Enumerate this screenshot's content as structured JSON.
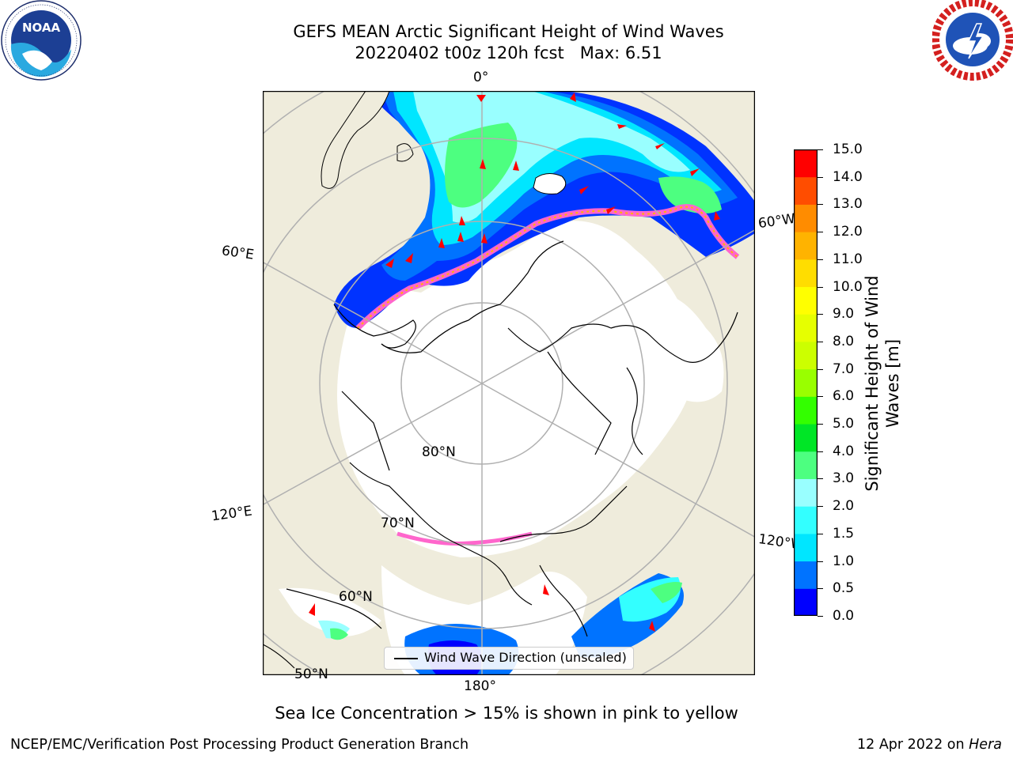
{
  "header": {
    "title_line1": "GEFS MEAN Arctic Significant Height of Wind Waves",
    "title_line2": "20220402 t00z 120h fcst   Max: 6.51"
  },
  "logos": {
    "noaa": {
      "text": "NOAA",
      "ring_text": "NATIONAL OCEANIC AND ATMOSPHERIC ADMINISTRATION · U.S. DEPARTMENT OF COMMERCE"
    },
    "nws": {
      "ring_text": "NATIONAL WEATHER SERVICE"
    }
  },
  "map": {
    "longitude_labels": {
      "lon_0": "0°",
      "lon_60e": "60°E",
      "lon_60w": "60°W",
      "lon_120e": "120°E",
      "lon_120w": "120°W",
      "lon_180": "180°"
    },
    "latitude_labels": {
      "lat_80": "80°N",
      "lat_70": "70°N",
      "lat_60": "60°N",
      "lat_50": "50°N"
    },
    "legend_label": "Wind Wave Direction (unscaled)",
    "colors": {
      "land": "#efecdc",
      "ocean_ice": "#ffffff",
      "graticule": "#b0b0b0",
      "arrow": "#ff0000",
      "coast": "#000000"
    }
  },
  "colorbar": {
    "title_line1": "Significant Height of Wind",
    "title_line2": "Waves [m]",
    "ticks": [
      "0.0",
      "0.5",
      "1.0",
      "1.5",
      "2.0",
      "3.0",
      "4.0",
      "5.0",
      "6.0",
      "7.0",
      "8.0",
      "9.0",
      "10.0",
      "11.0",
      "12.0",
      "13.0",
      "14.0",
      "15.0"
    ],
    "colors": [
      "#0000ff",
      "#0073ff",
      "#00e6ff",
      "#33ffff",
      "#99ffff",
      "#4dff80",
      "#00e626",
      "#33ff00",
      "#99ff00",
      "#ccff00",
      "#e6ff00",
      "#ffff00",
      "#ffdd00",
      "#ffb300",
      "#ff8c00",
      "#ff4d00",
      "#ff0000"
    ]
  },
  "caption": "Sea Ice Concentration > 15% is shown in pink to yellow",
  "footer": {
    "left": "NCEP/EMC/Verification Post Processing Product Generation Branch",
    "right_prefix": "12 Apr 2022 on ",
    "right_machine": "Hera"
  }
}
